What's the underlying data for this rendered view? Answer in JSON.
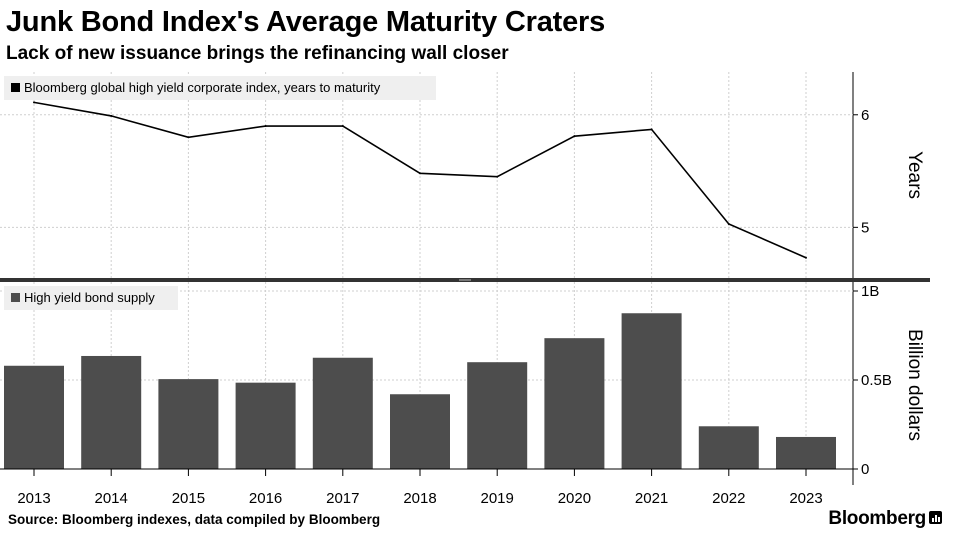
{
  "header": {
    "title": "Junk Bond Index's Average Maturity Craters",
    "subtitle": "Lack of new issuance brings the refinancing wall closer"
  },
  "footer": {
    "source": "Source: Bloomberg indexes, data compiled by Bloomberg",
    "brand": "Bloomberg"
  },
  "chart_data": [
    {
      "type": "line",
      "legend": "Bloomberg global high yield corporate index, years to maturity",
      "ylabel": "Years",
      "y_ticks": [
        5,
        6
      ],
      "y_tick_labels": [
        "5",
        "6"
      ],
      "ylim": [
        4.55,
        6.38
      ],
      "x": [
        "2013",
        "2014",
        "2015",
        "2016",
        "2017",
        "2018",
        "2019",
        "2020",
        "2021",
        "2022",
        "2023"
      ],
      "values": [
        6.11,
        5.99,
        5.8,
        5.9,
        5.9,
        5.48,
        5.45,
        5.81,
        5.87,
        5.03,
        4.73
      ],
      "line_color": "#000000",
      "grid": true
    },
    {
      "type": "bar",
      "legend": "High yield bond supply",
      "ylabel": "Billion dollars",
      "y_ticks": [
        0,
        0.5,
        1
      ],
      "y_tick_labels": [
        "0",
        "0.5B",
        "1B"
      ],
      "ylim": [
        0,
        1.0
      ],
      "categories": [
        "2013",
        "2014",
        "2015",
        "2016",
        "2017",
        "2018",
        "2019",
        "2020",
        "2021",
        "2022",
        "2023"
      ],
      "values": [
        0.58,
        0.635,
        0.505,
        0.485,
        0.625,
        0.42,
        0.6,
        0.735,
        0.875,
        0.24,
        0.18
      ],
      "bar_color": "#4d4d4d",
      "grid": true
    }
  ]
}
